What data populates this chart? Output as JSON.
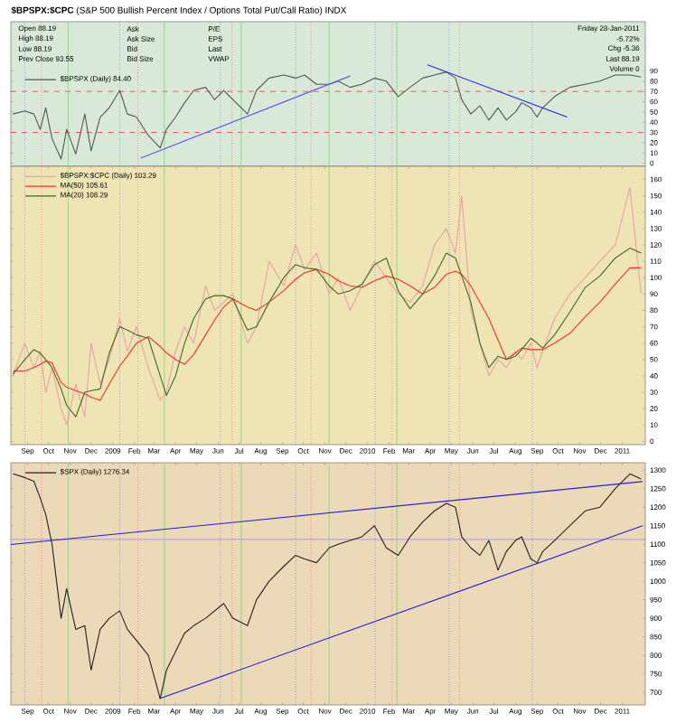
{
  "chart_data": [
    {
      "type": "line",
      "title": "$BPSPX:$CPC",
      "subtitle": "(S&P 500 Bullish Percent Index / Options Total Put/Call Ratio) INDX",
      "annotations": [
        "Open 88.19",
        "High 88.19",
        "Low 88.19",
        "Prev Close 93.55",
        "Ask",
        "Ask Size",
        "Bid",
        "Bid Size",
        "P/E",
        "EPS",
        "Last",
        "VWAP",
        "Friday 28-Jan-2011",
        "-5.72%",
        "Chg -5.36",
        "Last 88.19",
        "Volume 0"
      ],
      "x": [
        "2008-08-11",
        "2008-08-28",
        "2008-09-10",
        "2008-09-19",
        "2008-09-27",
        "2008-10-06",
        "2008-10-19",
        "2008-10-27",
        "2008-11-09",
        "2008-11-22",
        "2008-12-01",
        "2008-12-14",
        "2008-12-27",
        "2009-01-11",
        "2009-01-22",
        "2009-02-04",
        "2009-02-21",
        "2009-03-10",
        "2009-03-19",
        "2009-04-01",
        "2009-04-14",
        "2009-04-27",
        "2009-05-14",
        "2009-05-27",
        "2009-06-09",
        "2009-06-22",
        "2009-07-13",
        "2009-07-26",
        "2009-08-13",
        "2009-09-03",
        "2009-09-20",
        "2009-10-03",
        "2009-10-20",
        "2009-11-07",
        "2009-11-20",
        "2009-12-07",
        "2009-12-24",
        "2010-01-11",
        "2010-01-28",
        "2010-02-14",
        "2010-03-03",
        "2010-03-21",
        "2010-04-07",
        "2010-04-24",
        "2010-05-07",
        "2010-05-16",
        "2010-05-29",
        "2010-06-11",
        "2010-06-24",
        "2010-07-07",
        "2010-07-19",
        "2010-08-01",
        "2010-08-10",
        "2010-08-23",
        "2010-09-01",
        "2010-09-09",
        "2010-09-26",
        "2010-10-18",
        "2010-11-09",
        "2010-11-30",
        "2010-12-22",
        "2011-01-12",
        "2011-01-28"
      ],
      "series": [
        {
          "name": "$BPSPX (Daily) 84.40",
          "color": "#555555",
          "values": [
            48,
            51,
            48,
            33,
            54,
            24,
            4,
            33,
            9,
            48,
            12,
            45,
            54,
            71,
            48,
            45,
            27,
            15,
            33,
            45,
            59,
            71,
            74,
            62,
            71,
            62,
            48,
            71,
            83,
            86,
            83,
            86,
            77,
            77,
            80,
            74,
            77,
            83,
            80,
            65,
            74,
            83,
            86,
            89,
            83,
            62,
            48,
            56,
            42,
            54,
            42,
            50,
            59,
            54,
            45,
            54,
            65,
            74,
            77,
            80,
            86,
            86,
            84
          ]
        },
        {
          "color": "#5a5af0",
          "x": [
            "2009-02-10",
            "2009-12-07"
          ],
          "values": [
            5,
            85
          ]
        },
        {
          "color": "#2020e0",
          "x": [
            "2010-03-28",
            "2010-10-14"
          ],
          "values": [
            96,
            45
          ]
        }
      ],
      "xlim": [
        "2008-08-08",
        "2011-02-03"
      ],
      "ylim": [
        -3,
        138
      ],
      "yticks": [
        0,
        10,
        20,
        30,
        40,
        50,
        60,
        70,
        80,
        90
      ],
      "tick_labels": "y",
      "legend": "top left",
      "ref_lines": [
        {
          "axis": "y",
          "value": 70,
          "color": "#ff3333",
          "line_style": "dashed"
        },
        {
          "axis": "y",
          "value": 30,
          "color": "#ff3333",
          "line_style": "dashed"
        },
        {
          "axis": "x",
          "value": "2008-08-28",
          "color": "#7070ff",
          "line_style": "dotted"
        },
        {
          "axis": "x",
          "value": "2009-01-11",
          "color": "#7070ff",
          "line_style": "dotted"
        },
        {
          "axis": "x",
          "value": "2009-06-04",
          "color": "#7070ff",
          "line_style": "dotted"
        },
        {
          "axis": "x",
          "value": "2009-09-20",
          "color": "#7070ff",
          "line_style": "dotted"
        },
        {
          "axis": "x",
          "value": "2010-01-12",
          "color": "#7070ff",
          "line_style": "dotted"
        },
        {
          "axis": "x",
          "value": "2010-04-28",
          "color": "#7070ff",
          "line_style": "dotted"
        },
        {
          "axis": "x",
          "value": "2010-08-25",
          "color": "#7070ff",
          "line_style": "dotted"
        },
        {
          "axis": "x",
          "value": "2008-09-21",
          "color": "#ff6060",
          "line_style": "dotted"
        },
        {
          "axis": "x",
          "value": "2009-02-06",
          "color": "#ff6060",
          "line_style": "dotted"
        },
        {
          "axis": "x",
          "value": "2009-06-21",
          "color": "#ff6060",
          "line_style": "dotted"
        },
        {
          "axis": "x",
          "value": "2009-10-12",
          "color": "#ff6060",
          "line_style": "dotted"
        },
        {
          "axis": "x",
          "value": "2010-02-05",
          "color": "#ff6060",
          "line_style": "dotted"
        },
        {
          "axis": "x",
          "value": "2010-05-13",
          "color": "#ff6060",
          "line_style": "dotted"
        },
        {
          "axis": "x",
          "value": "2008-10-29",
          "color": "#70dd70",
          "line_style": "solid"
        },
        {
          "axis": "x",
          "value": "2009-03-16",
          "color": "#70dd70",
          "line_style": "solid"
        },
        {
          "axis": "x",
          "value": "2009-07-04",
          "color": "#70dd70",
          "line_style": "solid"
        },
        {
          "axis": "x",
          "value": "2009-11-07",
          "color": "#70dd70",
          "line_style": "solid"
        },
        {
          "axis": "x",
          "value": "2010-02-12",
          "color": "#70dd70",
          "line_style": "solid"
        }
      ]
    },
    {
      "type": "line",
      "x": [
        "2008-08-11",
        "2008-08-28",
        "2008-09-10",
        "2008-09-19",
        "2008-09-27",
        "2008-10-06",
        "2008-10-19",
        "2008-10-27",
        "2008-11-09",
        "2008-11-22",
        "2008-12-01",
        "2008-12-14",
        "2008-12-27",
        "2009-01-11",
        "2009-01-22",
        "2009-02-04",
        "2009-02-21",
        "2009-03-10",
        "2009-03-19",
        "2009-04-01",
        "2009-04-14",
        "2009-04-27",
        "2009-05-14",
        "2009-05-27",
        "2009-06-09",
        "2009-06-22",
        "2009-07-13",
        "2009-07-26",
        "2009-08-13",
        "2009-09-03",
        "2009-09-20",
        "2009-10-03",
        "2009-10-20",
        "2009-11-07",
        "2009-11-20",
        "2009-12-07",
        "2009-12-24",
        "2010-01-11",
        "2010-01-28",
        "2010-02-14",
        "2010-03-03",
        "2010-03-21",
        "2010-04-07",
        "2010-04-24",
        "2010-05-07",
        "2010-05-16",
        "2010-05-29",
        "2010-06-11",
        "2010-06-24",
        "2010-07-07",
        "2010-07-19",
        "2010-08-01",
        "2010-08-10",
        "2010-08-23",
        "2010-09-01",
        "2010-09-09",
        "2010-09-26",
        "2010-10-18",
        "2010-11-09",
        "2010-11-30",
        "2010-12-22",
        "2011-01-12",
        "2011-01-28"
      ],
      "series": [
        {
          "name": "$BPSPX:$CPC (Daily) 103.29",
          "color": "#eaa0a8",
          "values": [
            40,
            60,
            45,
            55,
            30,
            45,
            20,
            10,
            35,
            15,
            60,
            35,
            50,
            75,
            55,
            70,
            45,
            25,
            30,
            55,
            70,
            60,
            95,
            80,
            85,
            90,
            60,
            70,
            110,
            95,
            120,
            105,
            115,
            90,
            100,
            80,
            95,
            110,
            100,
            90,
            85,
            95,
            120,
            130,
            115,
            150,
            80,
            60,
            40,
            50,
            45,
            55,
            50,
            60,
            45,
            55,
            75,
            90,
            100,
            110,
            120,
            155,
            90
          ]
        },
        {
          "name": "MA(50) 105.61",
          "color": "#ee3322",
          "values": [
            43,
            43,
            45,
            47,
            49,
            48,
            36,
            33,
            31,
            29,
            27,
            25,
            35,
            46,
            52,
            60,
            64,
            58,
            54,
            50,
            47,
            53,
            65,
            74,
            82,
            87,
            82,
            80,
            85,
            92,
            99,
            103,
            105,
            102,
            98,
            95,
            94,
            98,
            101,
            99,
            95,
            90,
            94,
            102,
            104,
            102,
            95,
            85,
            75,
            62,
            50,
            54,
            57,
            56,
            56,
            56,
            60,
            66,
            76,
            85,
            96,
            106,
            106
          ]
        },
        {
          "name": "MA(20) 108.29",
          "color": "#3a6a2a",
          "values": [
            41,
            50,
            56,
            54,
            50,
            45,
            32,
            22,
            15,
            30,
            31,
            32,
            54,
            70,
            68,
            65,
            63,
            40,
            28,
            40,
            60,
            75,
            87,
            89,
            89,
            87,
            68,
            70,
            85,
            100,
            108,
            106,
            105,
            95,
            90,
            92,
            96,
            108,
            112,
            92,
            81,
            90,
            101,
            115,
            112,
            101,
            85,
            60,
            45,
            52,
            50,
            52,
            56,
            63,
            60,
            57,
            65,
            79,
            94,
            101,
            112,
            118,
            115
          ]
        }
      ],
      "xlim": [
        "2008-08-08",
        "2011-02-03"
      ],
      "ylim": [
        -2,
        168
      ],
      "yticks": [
        0,
        10,
        20,
        30,
        40,
        50,
        60,
        70,
        80,
        90,
        100,
        110,
        120,
        130,
        140,
        150,
        160
      ],
      "legend": "top left",
      "xticks": [
        {
          "value": "2008-09-01",
          "label": "Sep"
        },
        {
          "value": "2008-10-01",
          "label": "Oct"
        },
        {
          "value": "2008-11-01",
          "label": "Nov"
        },
        {
          "value": "2008-12-01",
          "label": "Dec"
        },
        {
          "value": "2009-01-01",
          "label": "2009"
        },
        {
          "value": "2009-02-01",
          "label": "Feb"
        },
        {
          "value": "2009-03-01",
          "label": "Mar"
        },
        {
          "value": "2009-04-01",
          "label": "Apr"
        },
        {
          "value": "2009-05-01",
          "label": "May"
        },
        {
          "value": "2009-06-01",
          "label": "Jun"
        },
        {
          "value": "2009-07-01",
          "label": "Jul"
        },
        {
          "value": "2009-08-01",
          "label": "Aug"
        },
        {
          "value": "2009-09-01",
          "label": "Sep"
        },
        {
          "value": "2009-10-01",
          "label": "Oct"
        },
        {
          "value": "2009-11-01",
          "label": "Nov"
        },
        {
          "value": "2009-12-01",
          "label": "Dec"
        },
        {
          "value": "2010-01-01",
          "label": "2010"
        },
        {
          "value": "2010-02-01",
          "label": "Feb"
        },
        {
          "value": "2010-03-01",
          "label": "Mar"
        },
        {
          "value": "2010-04-01",
          "label": "Apr"
        },
        {
          "value": "2010-05-01",
          "label": "May"
        },
        {
          "value": "2010-06-01",
          "label": "Jun"
        },
        {
          "value": "2010-07-01",
          "label": "Jul"
        },
        {
          "value": "2010-08-01",
          "label": "Aug"
        },
        {
          "value": "2010-09-01",
          "label": "Sep"
        },
        {
          "value": "2010-10-01",
          "label": "Oct"
        },
        {
          "value": "2010-11-01",
          "label": "Nov"
        },
        {
          "value": "2010-12-01",
          "label": "Dec"
        },
        {
          "value": "2011-01-01",
          "label": "2011"
        }
      ],
      "ref_lines": [
        {
          "axis": "x",
          "value": "2008-08-28",
          "color": "#7070ff",
          "line_style": "dotted"
        },
        {
          "axis": "x",
          "value": "2009-01-11",
          "color": "#7070ff",
          "line_style": "dotted"
        },
        {
          "axis": "x",
          "value": "2009-06-04",
          "color": "#7070ff",
          "line_style": "dotted"
        },
        {
          "axis": "x",
          "value": "2009-09-20",
          "color": "#7070ff",
          "line_style": "dotted"
        },
        {
          "axis": "x",
          "value": "2010-01-12",
          "color": "#7070ff",
          "line_style": "dotted"
        },
        {
          "axis": "x",
          "value": "2010-04-28",
          "color": "#7070ff",
          "line_style": "dotted"
        },
        {
          "axis": "x",
          "value": "2010-08-25",
          "color": "#7070ff",
          "line_style": "dotted"
        },
        {
          "axis": "x",
          "value": "2008-09-21",
          "color": "#ff6060",
          "line_style": "dotted"
        },
        {
          "axis": "x",
          "value": "2009-02-06",
          "color": "#ff6060",
          "line_style": "dotted"
        },
        {
          "axis": "x",
          "value": "2009-06-21",
          "color": "#ff6060",
          "line_style": "dotted"
        },
        {
          "axis": "x",
          "value": "2009-10-12",
          "color": "#ff6060",
          "line_style": "dotted"
        },
        {
          "axis": "x",
          "value": "2010-02-05",
          "color": "#ff6060",
          "line_style": "dotted"
        },
        {
          "axis": "x",
          "value": "2010-05-13",
          "color": "#ff6060",
          "line_style": "dotted"
        },
        {
          "axis": "x",
          "value": "2008-10-29",
          "color": "#70dd70",
          "line_style": "solid"
        },
        {
          "axis": "x",
          "value": "2009-03-16",
          "color": "#70dd70",
          "line_style": "solid"
        },
        {
          "axis": "x",
          "value": "2009-07-04",
          "color": "#70dd70",
          "line_style": "solid"
        },
        {
          "axis": "x",
          "value": "2009-11-07",
          "color": "#70dd70",
          "line_style": "solid"
        },
        {
          "axis": "x",
          "value": "2010-02-12",
          "color": "#70dd70",
          "line_style": "solid"
        }
      ]
    },
    {
      "type": "line",
      "x": [
        "2008-08-11",
        "2008-08-28",
        "2008-09-10",
        "2008-09-19",
        "2008-09-27",
        "2008-10-06",
        "2008-10-19",
        "2008-10-27",
        "2008-11-09",
        "2008-11-22",
        "2008-12-01",
        "2008-12-14",
        "2008-12-27",
        "2009-01-11",
        "2009-01-22",
        "2009-02-04",
        "2009-02-21",
        "2009-03-10",
        "2009-03-19",
        "2009-04-01",
        "2009-04-14",
        "2009-04-27",
        "2009-05-14",
        "2009-05-27",
        "2009-06-09",
        "2009-06-22",
        "2009-07-13",
        "2009-07-26",
        "2009-08-13",
        "2009-09-03",
        "2009-09-20",
        "2009-10-03",
        "2009-10-20",
        "2009-11-07",
        "2009-11-20",
        "2009-12-07",
        "2009-12-24",
        "2010-01-11",
        "2010-01-28",
        "2010-02-14",
        "2010-03-03",
        "2010-03-21",
        "2010-04-07",
        "2010-04-24",
        "2010-05-07",
        "2010-05-16",
        "2010-05-29",
        "2010-06-11",
        "2010-06-24",
        "2010-07-07",
        "2010-07-19",
        "2010-08-01",
        "2010-08-10",
        "2010-08-23",
        "2010-09-01",
        "2010-09-09",
        "2010-09-26",
        "2010-10-18",
        "2010-11-09",
        "2010-11-30",
        "2010-12-22",
        "2011-01-12",
        "2011-01-28"
      ],
      "series": [
        {
          "name": "$SPX (Daily) 1276.34",
          "color": "#222222",
          "values": [
            1290,
            1280,
            1270,
            1225,
            1180,
            1100,
            900,
            980,
            870,
            880,
            760,
            870,
            900,
            920,
            870,
            840,
            800,
            683,
            760,
            810,
            860,
            880,
            900,
            920,
            940,
            900,
            880,
            950,
            1000,
            1040,
            1070,
            1060,
            1050,
            1090,
            1100,
            1110,
            1120,
            1150,
            1090,
            1070,
            1120,
            1160,
            1190,
            1210,
            1200,
            1120,
            1090,
            1070,
            1110,
            1030,
            1080,
            1110,
            1120,
            1060,
            1050,
            1080,
            1110,
            1150,
            1190,
            1200,
            1250,
            1290,
            1276
          ]
        },
        {
          "color": "#2020e0",
          "x": [
            "2008-08-08",
            "2011-01-30"
          ],
          "values": [
            1099,
            1269
          ]
        },
        {
          "color": "#2020e0",
          "x": [
            "2009-03-09",
            "2011-01-30"
          ],
          "values": [
            683,
            1150
          ]
        }
      ],
      "xlim": [
        "2008-08-08",
        "2011-02-03"
      ],
      "ylim": [
        666,
        1320
      ],
      "yticks": [
        700,
        750,
        800,
        850,
        900,
        950,
        1000,
        1050,
        1100,
        1150,
        1200,
        1250,
        1300
      ],
      "legend": "top left",
      "xticks": [
        {
          "value": "2008-09-01",
          "label": "Sep"
        },
        {
          "value": "2008-10-01",
          "label": "Oct"
        },
        {
          "value": "2008-11-01",
          "label": "Nov"
        },
        {
          "value": "2008-12-01",
          "label": "Dec"
        },
        {
          "value": "2009-01-01",
          "label": "2009"
        },
        {
          "value": "2009-02-01",
          "label": "Feb"
        },
        {
          "value": "2009-03-01",
          "label": "Mar"
        },
        {
          "value": "2009-04-01",
          "label": "Apr"
        },
        {
          "value": "2009-05-01",
          "label": "May"
        },
        {
          "value": "2009-06-01",
          "label": "Jun"
        },
        {
          "value": "2009-07-01",
          "label": "Jul"
        },
        {
          "value": "2009-08-01",
          "label": "Aug"
        },
        {
          "value": "2009-09-01",
          "label": "Sep"
        },
        {
          "value": "2009-10-01",
          "label": "Oct"
        },
        {
          "value": "2009-11-01",
          "label": "Nov"
        },
        {
          "value": "2009-12-01",
          "label": "Dec"
        },
        {
          "value": "2010-01-01",
          "label": "2010"
        },
        {
          "value": "2010-02-01",
          "label": "Feb"
        },
        {
          "value": "2010-03-01",
          "label": "Mar"
        },
        {
          "value": "2010-04-01",
          "label": "Apr"
        },
        {
          "value": "2010-05-01",
          "label": "May"
        },
        {
          "value": "2010-06-01",
          "label": "Jun"
        },
        {
          "value": "2010-07-01",
          "label": "Jul"
        },
        {
          "value": "2010-08-01",
          "label": "Aug"
        },
        {
          "value": "2010-09-01",
          "label": "Sep"
        },
        {
          "value": "2010-10-01",
          "label": "Oct"
        },
        {
          "value": "2010-11-01",
          "label": "Nov"
        },
        {
          "value": "2010-12-01",
          "label": "Dec"
        },
        {
          "value": "2011-01-01",
          "label": "2011"
        }
      ],
      "ref_lines": [
        {
          "axis": "y",
          "value": 1113,
          "color": "#9a8fcf",
          "line_style": "solid"
        },
        {
          "axis": "x",
          "value": "2008-08-28",
          "color": "#7070ff",
          "line_style": "dotted"
        },
        {
          "axis": "x",
          "value": "2009-01-11",
          "color": "#7070ff",
          "line_style": "dotted"
        },
        {
          "axis": "x",
          "value": "2009-06-04",
          "color": "#7070ff",
          "line_style": "dotted"
        },
        {
          "axis": "x",
          "value": "2009-09-20",
          "color": "#7070ff",
          "line_style": "dotted"
        },
        {
          "axis": "x",
          "value": "2010-01-12",
          "color": "#7070ff",
          "line_style": "dotted"
        },
        {
          "axis": "x",
          "value": "2010-04-28",
          "color": "#7070ff",
          "line_style": "dotted"
        },
        {
          "axis": "x",
          "value": "2010-08-25",
          "color": "#7070ff",
          "line_style": "dotted"
        },
        {
          "axis": "x",
          "value": "2008-09-21",
          "color": "#ff6060",
          "line_style": "dotted"
        },
        {
          "axis": "x",
          "value": "2009-02-06",
          "color": "#ff6060",
          "line_style": "dotted"
        },
        {
          "axis": "x",
          "value": "2009-06-21",
          "color": "#ff6060",
          "line_style": "dotted"
        },
        {
          "axis": "x",
          "value": "2009-10-12",
          "color": "#ff6060",
          "line_style": "dotted"
        },
        {
          "axis": "x",
          "value": "2010-02-05",
          "color": "#ff6060",
          "line_style": "dotted"
        },
        {
          "axis": "x",
          "value": "2010-05-13",
          "color": "#ff6060",
          "line_style": "dotted"
        },
        {
          "axis": "x",
          "value": "2008-10-29",
          "color": "#70dd70",
          "line_style": "solid"
        },
        {
          "axis": "x",
          "value": "2009-03-16",
          "color": "#70dd70",
          "line_style": "solid"
        },
        {
          "axis": "x",
          "value": "2009-07-04",
          "color": "#70dd70",
          "line_style": "solid"
        },
        {
          "axis": "x",
          "value": "2009-11-07",
          "color": "#70dd70",
          "line_style": "solid"
        },
        {
          "axis": "x",
          "value": "2010-02-12",
          "color": "#70dd70",
          "line_style": "solid"
        }
      ]
    }
  ]
}
